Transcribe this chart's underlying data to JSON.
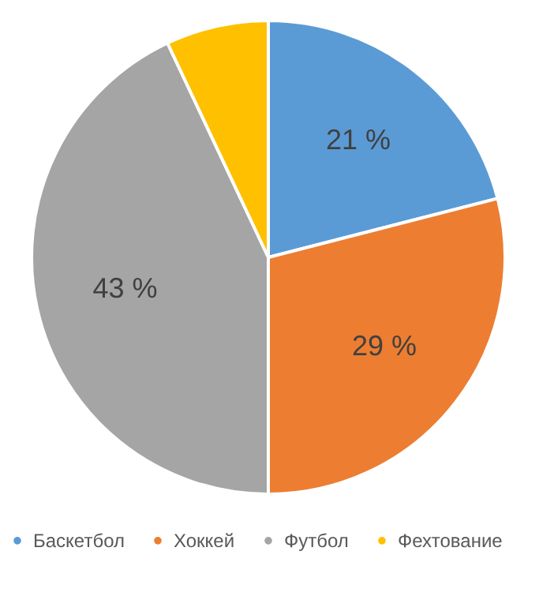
{
  "chart_data": {
    "type": "pie",
    "categories": [
      "Баскетбол",
      "Хоккей",
      "Футбол",
      "Фехтование"
    ],
    "values": [
      21,
      29,
      43,
      7
    ],
    "colors": [
      "#5b9bd5",
      "#ed7d31",
      "#a5a5a5",
      "#ffc000"
    ],
    "value_labels": [
      "21 %",
      "29 %",
      "43 %",
      null
    ],
    "legend": "bottom"
  }
}
